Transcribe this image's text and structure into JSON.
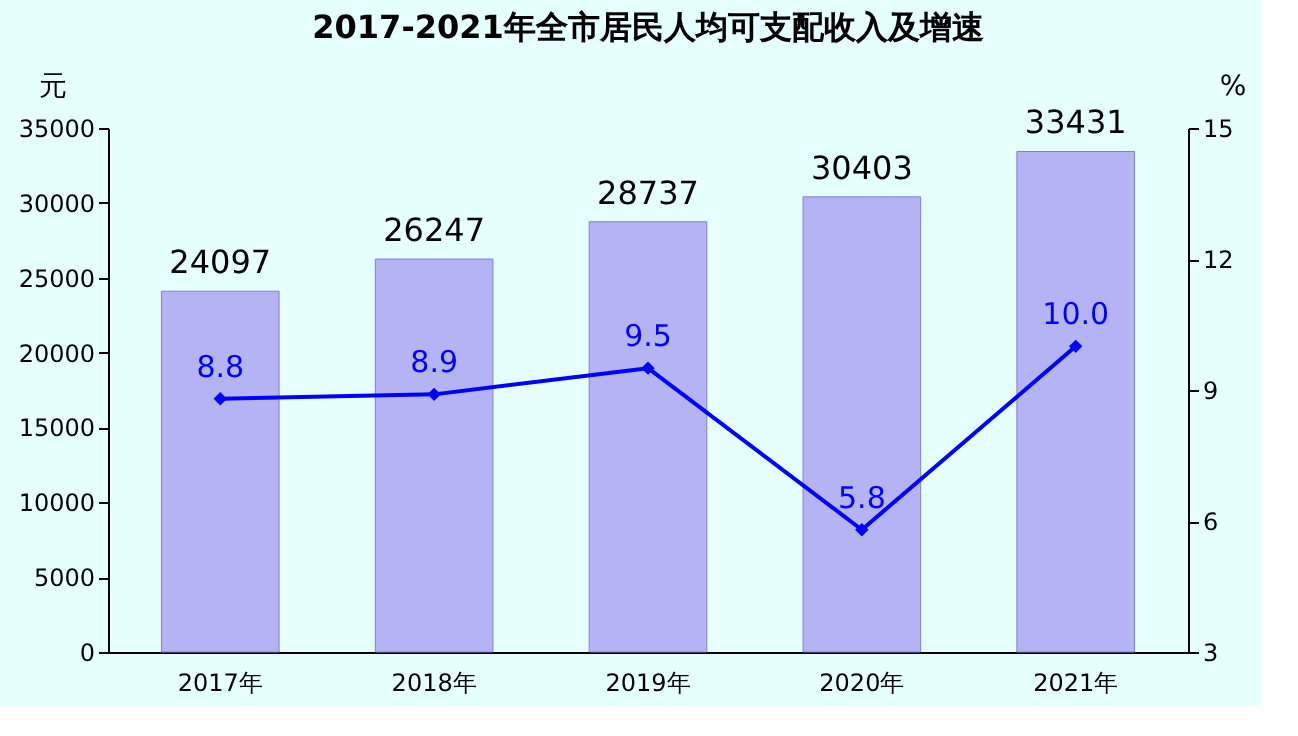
{
  "chart_data": {
    "type": "bar",
    "title": "2017-2021年全市居民人均可支配收入及增速",
    "categories": [
      "2017年",
      "2018年",
      "2019年",
      "2020年",
      "2021年"
    ],
    "series": [
      {
        "color": "#b4b4f4",
        "values": [
          24097,
          26247,
          28737,
          30403,
          33431
        ],
        "value_labels": [
          "24097",
          "26247",
          "28737",
          "30403",
          "33431"
        ]
      },
      {
        "type": "line",
        "axis": "y2",
        "color": "#0000ff",
        "marker": "diamond",
        "values": [
          8.8,
          8.9,
          9.5,
          5.8,
          10.0
        ],
        "value_labels": [
          "8.8",
          "8.9",
          "9.5",
          "5.8",
          "10.0"
        ]
      }
    ],
    "ylabel": "元",
    "y2label": "%",
    "ylim": [
      0,
      35000
    ],
    "yticks": [
      0,
      5000,
      10000,
      15000,
      20000,
      25000,
      30000,
      35000
    ],
    "y2lim": [
      3,
      15
    ],
    "y2ticks": [
      3,
      6,
      9,
      12,
      15
    ],
    "grid": false
  }
}
